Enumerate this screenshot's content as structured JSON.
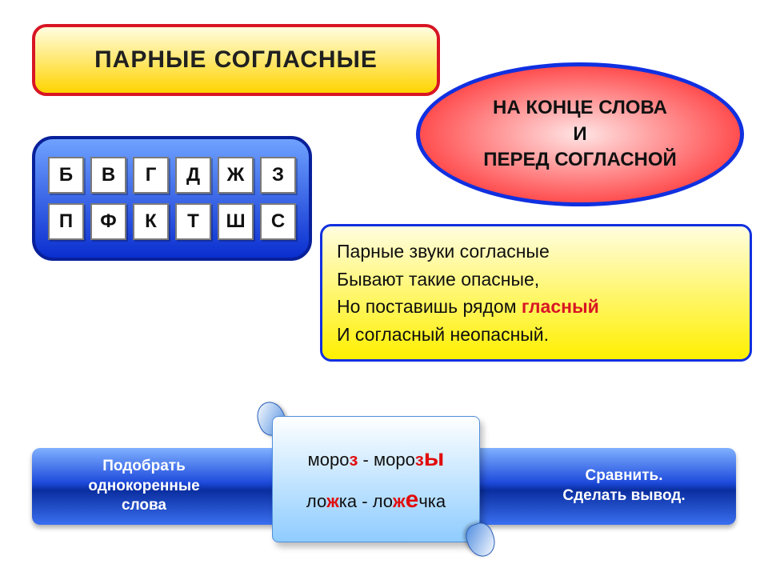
{
  "title": {
    "text": "ПАРНЫЕ   СОГЛАСНЫЕ",
    "fontsize": 30,
    "text_color": "#202020",
    "bg_top": "#fffde0",
    "bg_bottom": "#ffd400",
    "border_color": "#d81524",
    "border_width": 4
  },
  "ellipse": {
    "line1": "НА КОНЦЕ СЛОВА",
    "line2": "И",
    "line3": "ПЕРЕД  СОГЛАСНОЙ",
    "fontsize": 24,
    "text_color": "#111111",
    "bg_inner_top": "#ffe5e5",
    "bg_inner_bottom": "#ff3a3c",
    "border_color": "#1030e0",
    "border_width": 5
  },
  "letters": {
    "top_row": [
      "Б",
      "В",
      "Г",
      "Д",
      "Ж",
      "З"
    ],
    "bottom_row": [
      "П",
      "Ф",
      "К",
      "Т",
      "Ш",
      "С"
    ],
    "cell_fontsize": 24,
    "cell_text_color": "#111111",
    "panel_bg_top": "#6fa2ff",
    "panel_bg_bottom": "#0a2ecf",
    "panel_border": "#08209a"
  },
  "poem": {
    "lines": [
      {
        "pre": "Парные звуки согласные",
        "hl": "",
        "post": ""
      },
      {
        "pre": "Бывают такие опасные,",
        "hl": "",
        "post": ""
      },
      {
        "pre": "Но поставишь рядом ",
        "hl": "гласный",
        "post": ""
      },
      {
        "pre": "И согласный неопасный.",
        "hl": "",
        "post": ""
      }
    ],
    "fontsize": 23,
    "text_color": "#0f0f0f",
    "highlight_color": "#d81524",
    "bg_top": "#fffde0",
    "bg_bottom": "#fff000",
    "border_color": "#1030e0",
    "border_width": 3
  },
  "bottom": {
    "left_line1": "Подобрать",
    "left_line2": "однокоренные",
    "left_line3": "слова",
    "right_line1": "Сравнить.",
    "right_line2": "Сделать вывод.",
    "fontsize": 19,
    "text_color": "#ffffff",
    "bg_top": "#7fb0ff",
    "bg_mid": "#1e4bdc",
    "bg_bottom": "#3a6ff0"
  },
  "examples": {
    "items": [
      {
        "left_pre": "моро",
        "left_hl": "з",
        "dash": " - ",
        "right_pre": "моро",
        "right_hl": "з",
        "right_big": "ы"
      },
      {
        "left_pre": "ло",
        "left_hl": "ж",
        "left_post": "ка",
        "dash": " - ",
        "right_pre": "ло",
        "right_hl": "ж",
        "right_big": "е",
        "right_post": "чка"
      }
    ],
    "fontsize": 22,
    "text_color": "#101010",
    "red_color": "#e10c0c",
    "bg_top": "#ffffff",
    "bg_bottom": "#8fccff"
  }
}
